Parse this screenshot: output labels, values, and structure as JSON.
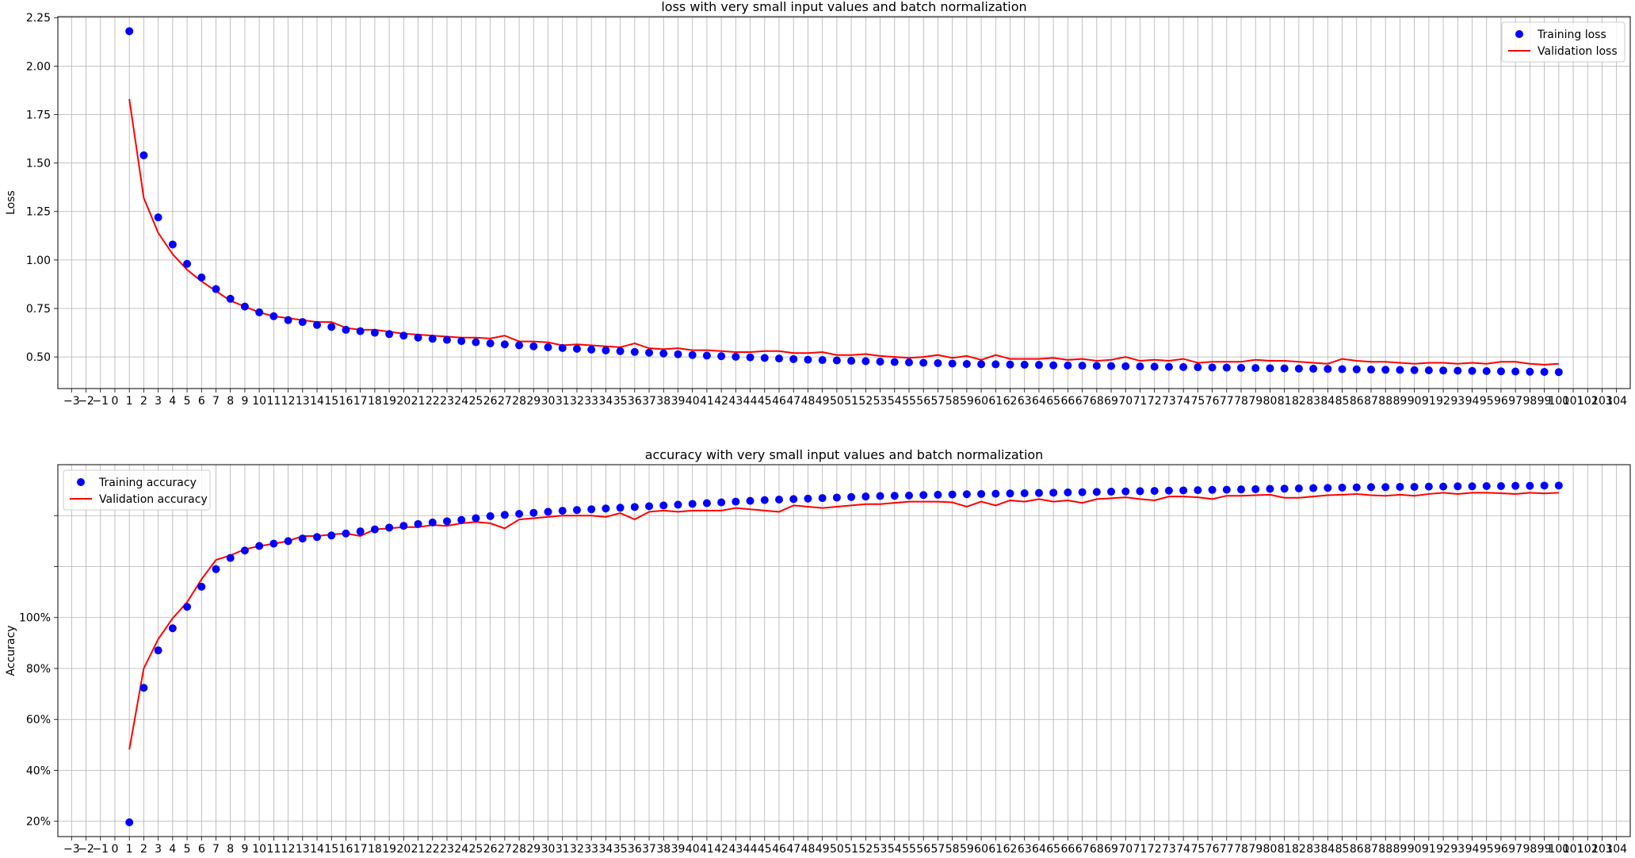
{
  "chart_data": [
    {
      "type": "scatter",
      "title": "loss with very small input values and batch normalization",
      "xlabel": "",
      "ylabel": "Loss",
      "xlim": [
        -3.95,
        104.95
      ],
      "ylim": [
        0.337,
        2.255
      ],
      "grid": true,
      "legend": "top-right",
      "x_ticks": [
        -3,
        -2,
        -1,
        0,
        1,
        2,
        3,
        4,
        5,
        6,
        7,
        8,
        9,
        10,
        11,
        12,
        13,
        14,
        15,
        16,
        17,
        18,
        19,
        20,
        21,
        22,
        23,
        24,
        25,
        26,
        27,
        28,
        29,
        30,
        31,
        32,
        33,
        34,
        35,
        36,
        37,
        38,
        39,
        40,
        41,
        42,
        43,
        44,
        45,
        46,
        47,
        48,
        49,
        50,
        51,
        52,
        53,
        54,
        55,
        56,
        57,
        58,
        59,
        60,
        61,
        62,
        63,
        64,
        65,
        66,
        67,
        68,
        69,
        70,
        71,
        72,
        73,
        74,
        75,
        76,
        77,
        78,
        79,
        80,
        81,
        82,
        83,
        84,
        85,
        86,
        87,
        88,
        89,
        90,
        91,
        92,
        93,
        94,
        95,
        96,
        97,
        98,
        99,
        100,
        101,
        102,
        103,
        104
      ],
      "y_ticks": [
        {
          "value": 0.5,
          "label": "0.50"
        },
        {
          "value": 0.75,
          "label": "0.75"
        },
        {
          "value": 1.0,
          "label": "1.00"
        },
        {
          "value": 1.25,
          "label": "1.25"
        },
        {
          "value": 1.5,
          "label": "1.50"
        },
        {
          "value": 1.75,
          "label": "1.75"
        },
        {
          "value": 2.0,
          "label": "2.00"
        },
        {
          "value": 2.25,
          "label": "2.25"
        }
      ],
      "series": [
        {
          "name": "Training loss",
          "kind": "points",
          "color": "#0000ff",
          "x_start": 1,
          "values": [
            2.18,
            1.54,
            1.22,
            1.08,
            0.98,
            0.91,
            0.85,
            0.8,
            0.76,
            0.73,
            0.71,
            0.69,
            0.68,
            0.665,
            0.655,
            0.64,
            0.633,
            0.625,
            0.618,
            0.61,
            0.6,
            0.594,
            0.588,
            0.582,
            0.576,
            0.57,
            0.565,
            0.56,
            0.555,
            0.55,
            0.546,
            0.542,
            0.538,
            0.534,
            0.53,
            0.526,
            0.522,
            0.518,
            0.514,
            0.51,
            0.507,
            0.504,
            0.501,
            0.498,
            0.495,
            0.492,
            0.489,
            0.486,
            0.484,
            0.482,
            0.48,
            0.478,
            0.476,
            0.474,
            0.472,
            0.47,
            0.468,
            0.466,
            0.464,
            0.463,
            0.462,
            0.461,
            0.46,
            0.459,
            0.457,
            0.456,
            0.455,
            0.454,
            0.453,
            0.452,
            0.451,
            0.45,
            0.449,
            0.448,
            0.447,
            0.446,
            0.445,
            0.444,
            0.443,
            0.442,
            0.441,
            0.44,
            0.439,
            0.438,
            0.437,
            0.436,
            0.435,
            0.434,
            0.433,
            0.432,
            0.431,
            0.43,
            0.429,
            0.428,
            0.427,
            0.426,
            0.425,
            0.424,
            0.423,
            0.422
          ]
        },
        {
          "name": "Validation loss",
          "kind": "line",
          "color": "#ff0000",
          "x_start": 1,
          "values": [
            1.83,
            1.32,
            1.14,
            1.03,
            0.95,
            0.89,
            0.84,
            0.79,
            0.76,
            0.73,
            0.71,
            0.7,
            0.69,
            0.68,
            0.68,
            0.65,
            0.64,
            0.64,
            0.63,
            0.62,
            0.615,
            0.61,
            0.605,
            0.6,
            0.6,
            0.595,
            0.61,
            0.58,
            0.58,
            0.575,
            0.56,
            0.565,
            0.56,
            0.555,
            0.55,
            0.57,
            0.545,
            0.54,
            0.545,
            0.535,
            0.535,
            0.53,
            0.525,
            0.525,
            0.53,
            0.53,
            0.52,
            0.52,
            0.525,
            0.51,
            0.51,
            0.515,
            0.505,
            0.5,
            0.495,
            0.5,
            0.51,
            0.495,
            0.505,
            0.485,
            0.51,
            0.49,
            0.49,
            0.49,
            0.495,
            0.485,
            0.49,
            0.48,
            0.485,
            0.5,
            0.48,
            0.485,
            0.48,
            0.49,
            0.47,
            0.475,
            0.475,
            0.475,
            0.485,
            0.48,
            0.48,
            0.475,
            0.47,
            0.465,
            0.49,
            0.48,
            0.475,
            0.475,
            0.47,
            0.465,
            0.47,
            0.47,
            0.465,
            0.47,
            0.465,
            0.475,
            0.475,
            0.465,
            0.46,
            0.465
          ]
        }
      ]
    },
    {
      "type": "scatter",
      "title": "accuracy with very small input values and batch normalization",
      "xlabel": "",
      "ylabel": "Accuracy",
      "xlim": [
        -3.95,
        104.95
      ],
      "ylim": [
        0.14,
        1.6
      ],
      "grid": true,
      "legend": "top-left",
      "x_ticks": [
        -3,
        -2,
        -1,
        0,
        1,
        2,
        3,
        4,
        5,
        6,
        7,
        8,
        9,
        10,
        11,
        12,
        13,
        14,
        15,
        16,
        17,
        18,
        19,
        20,
        21,
        22,
        23,
        24,
        25,
        26,
        27,
        28,
        29,
        30,
        31,
        32,
        33,
        34,
        35,
        36,
        37,
        38,
        39,
        40,
        41,
        42,
        43,
        44,
        45,
        46,
        47,
        48,
        49,
        50,
        51,
        52,
        53,
        54,
        55,
        56,
        57,
        58,
        59,
        60,
        61,
        62,
        63,
        64,
        65,
        66,
        67,
        68,
        69,
        70,
        71,
        72,
        73,
        74,
        75,
        76,
        77,
        78,
        79,
        80,
        81,
        82,
        83,
        84,
        85,
        86,
        87,
        88,
        89,
        90,
        91,
        92,
        93,
        94,
        95,
        96,
        97,
        98,
        99,
        100,
        101,
        102,
        103,
        104
      ],
      "y_ticks": [
        {
          "value": 0.2,
          "label": "20%"
        },
        {
          "value": 0.4,
          "label": "40%"
        },
        {
          "value": 0.6,
          "label": "60%"
        },
        {
          "value": 0.8,
          "label": "80%"
        },
        {
          "value": 1.0,
          "label": "100%"
        },
        {
          "value": 1.2,
          "label": ""
        },
        {
          "value": 1.4,
          "label": ""
        }
      ],
      "series": [
        {
          "name": "Training accuracy",
          "kind": "points",
          "color": "#0000ff",
          "x_start": 1,
          "values": [
            0.196,
            0.724,
            0.871,
            0.958,
            1.042,
            1.121,
            1.19,
            1.234,
            1.263,
            1.281,
            1.29,
            1.3,
            1.31,
            1.316,
            1.322,
            1.33,
            1.338,
            1.346,
            1.353,
            1.36,
            1.367,
            1.373,
            1.378,
            1.383,
            1.39,
            1.398,
            1.403,
            1.407,
            1.411,
            1.415,
            1.419,
            1.422,
            1.425,
            1.428,
            1.431,
            1.434,
            1.437,
            1.44,
            1.443,
            1.446,
            1.449,
            1.452,
            1.455,
            1.458,
            1.461,
            1.463,
            1.465,
            1.467,
            1.469,
            1.471,
            1.473,
            1.475,
            1.477,
            1.478,
            1.479,
            1.481,
            1.482,
            1.483,
            1.484,
            1.485,
            1.486,
            1.487,
            1.488,
            1.489,
            1.49,
            1.491,
            1.492,
            1.493,
            1.494,
            1.495,
            1.496,
            1.497,
            1.498,
            1.499,
            1.5,
            1.501,
            1.502,
            1.503,
            1.504,
            1.505,
            1.506,
            1.507,
            1.508,
            1.509,
            1.51,
            1.511,
            1.512,
            1.512,
            1.513,
            1.513,
            1.514,
            1.514,
            1.515,
            1.515,
            1.516,
            1.516,
            1.517,
            1.517,
            1.518,
            1.518
          ]
        },
        {
          "name": "Validation accuracy",
          "kind": "line",
          "color": "#ff0000",
          "x_start": 1,
          "values": [
            0.482,
            0.8,
            0.915,
            0.997,
            1.06,
            1.15,
            1.226,
            1.244,
            1.268,
            1.28,
            1.29,
            1.3,
            1.32,
            1.32,
            1.326,
            1.33,
            1.32,
            1.346,
            1.35,
            1.355,
            1.355,
            1.363,
            1.36,
            1.37,
            1.375,
            1.37,
            1.35,
            1.385,
            1.39,
            1.395,
            1.4,
            1.4,
            1.4,
            1.395,
            1.41,
            1.385,
            1.415,
            1.42,
            1.415,
            1.42,
            1.42,
            1.42,
            1.43,
            1.425,
            1.42,
            1.415,
            1.44,
            1.435,
            1.43,
            1.435,
            1.44,
            1.445,
            1.445,
            1.45,
            1.455,
            1.455,
            1.455,
            1.452,
            1.435,
            1.455,
            1.44,
            1.46,
            1.455,
            1.465,
            1.455,
            1.46,
            1.45,
            1.465,
            1.468,
            1.472,
            1.465,
            1.46,
            1.475,
            1.475,
            1.472,
            1.465,
            1.478,
            1.478,
            1.48,
            1.482,
            1.47,
            1.47,
            1.475,
            1.48,
            1.482,
            1.485,
            1.48,
            1.478,
            1.482,
            1.478,
            1.485,
            1.49,
            1.485,
            1.49,
            1.49,
            1.488,
            1.485,
            1.49,
            1.487,
            1.49
          ]
        }
      ]
    }
  ]
}
